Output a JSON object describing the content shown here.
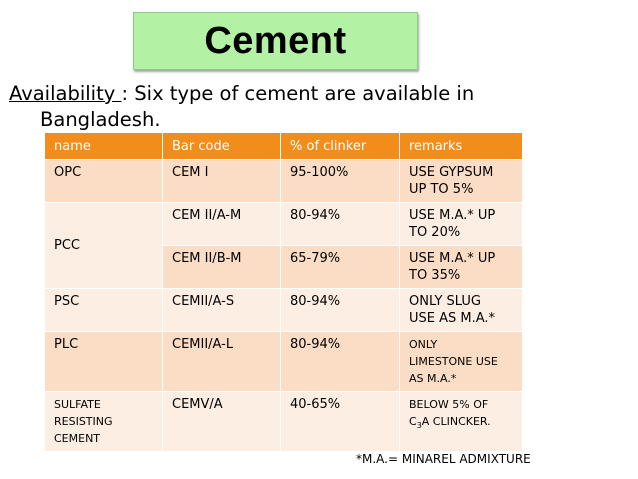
{
  "title": "Cement",
  "availability": {
    "lead": "Availability ",
    "text_line1": ": Six type of cement are available in",
    "text_line2": "Bangladesh."
  },
  "table": {
    "headers": [
      "name",
      "Bar code",
      "% of clinker",
      "remarks"
    ],
    "rows": [
      {
        "name": "OPC",
        "bar_code": "CEM I",
        "clinker": "95-100%",
        "remarks": [
          "USE GYPSUM",
          "UP TO 5%"
        ]
      },
      {
        "name": "PCC",
        "bar_code": "CEM II/A-M",
        "clinker": "80-94%",
        "remarks": [
          "USE M.A.* UP",
          "TO 20%"
        ]
      },
      {
        "name": "",
        "bar_code": "CEM II/B-M",
        "clinker": "65-79%",
        "remarks": [
          "USE M.A.* UP",
          "TO  35%"
        ]
      },
      {
        "name": "PSC",
        "bar_code": "CEMII/A-S",
        "clinker": "80-94%",
        "remarks": [
          "ONLY SLUG",
          "USE AS M.A.*"
        ]
      },
      {
        "name": "PLC",
        "bar_code": "CEMII/A-L",
        "clinker": "80-94%",
        "remarks": [
          "ONLY",
          "LIMESTONE USE",
          "AS M.A.*"
        ]
      },
      {
        "name": [
          "SULFATE",
          "RESISTING CEMENT"
        ],
        "bar_code": "CEMV/A",
        "clinker": "40-65%",
        "remarks": [
          "BELOW 5% OF",
          "C",
          "3",
          "A CLINCKER."
        ]
      }
    ]
  },
  "footnote": "*M.A.= MINAREL ADMIXTURE",
  "colors": {
    "title_bg": "#b3f2a4",
    "header_bg": "#f28c1b",
    "row_dark": "#fbdcc4",
    "row_light": "#fdeee3"
  }
}
